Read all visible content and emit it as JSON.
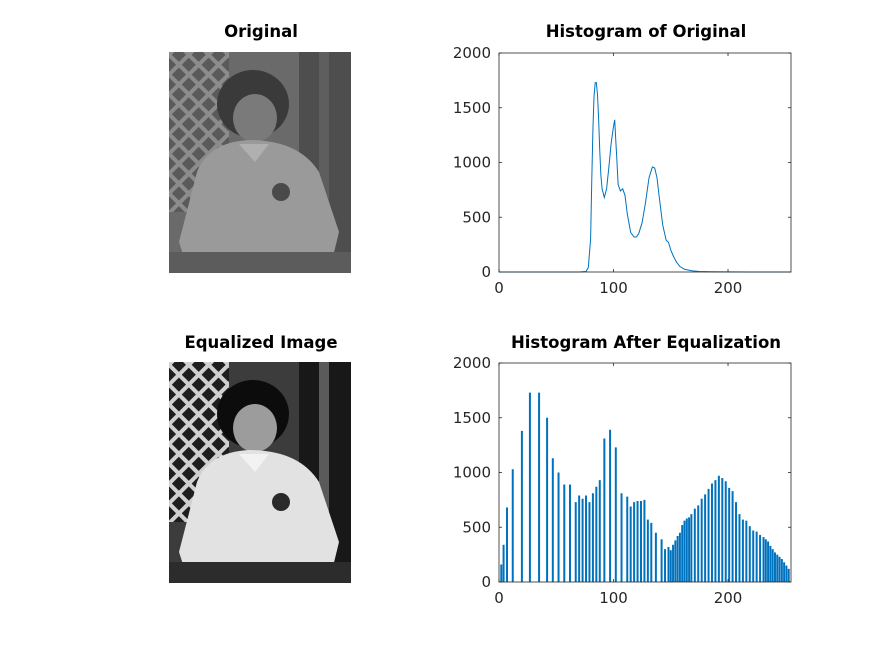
{
  "figure": {
    "panels": [
      {
        "id": "img1",
        "title": "Original"
      },
      {
        "id": "hist1",
        "title": "Histogram of Original"
      },
      {
        "id": "img2",
        "title": "Equalized Image"
      },
      {
        "id": "hist2",
        "title": "Histogram After Equalization"
      }
    ]
  },
  "colors": {
    "series": "#0072BD",
    "axes": "#262626"
  },
  "chart_data": [
    {
      "type": "line",
      "title": "Histogram of Original",
      "xlabel": "",
      "ylabel": "",
      "xlim": [
        0,
        255
      ],
      "ylim": [
        0,
        2000
      ],
      "xticks": [
        0,
        100,
        200
      ],
      "yticks": [
        0,
        500,
        1000,
        1500,
        2000
      ],
      "x": [
        0,
        70,
        76,
        78,
        80,
        81,
        82,
        83,
        84,
        85,
        86,
        87,
        88,
        89,
        90,
        92,
        94,
        96,
        98,
        100,
        101,
        102,
        103,
        104,
        106,
        108,
        110,
        112,
        115,
        118,
        120,
        122,
        125,
        128,
        131,
        134,
        136,
        138,
        140,
        143,
        146,
        148,
        150,
        152,
        155,
        158,
        162,
        168,
        175,
        185,
        200,
        220,
        240,
        255
      ],
      "values": [
        0,
        0,
        5,
        40,
        300,
        850,
        1300,
        1600,
        1730,
        1730,
        1620,
        1400,
        1100,
        880,
        760,
        680,
        760,
        960,
        1180,
        1330,
        1390,
        1200,
        1020,
        800,
        740,
        760,
        700,
        530,
        360,
        320,
        320,
        350,
        450,
        640,
        860,
        960,
        950,
        860,
        680,
        430,
        290,
        270,
        200,
        150,
        90,
        50,
        25,
        12,
        5,
        2,
        1,
        0,
        0,
        0
      ]
    },
    {
      "type": "bar",
      "title": "Histogram After Equalization",
      "xlabel": "",
      "ylabel": "",
      "xlim": [
        0,
        255
      ],
      "ylim": [
        0,
        2000
      ],
      "xticks": [
        0,
        100,
        200
      ],
      "yticks": [
        0,
        500,
        1000,
        1500,
        2000
      ],
      "x": [
        2,
        4,
        7,
        12,
        20,
        27,
        35,
        42,
        47,
        52,
        57,
        62,
        67,
        70,
        73,
        76,
        79,
        82,
        85,
        88,
        92,
        97,
        102,
        107,
        112,
        115,
        118,
        121,
        124,
        127,
        130,
        133,
        137,
        142,
        145,
        148,
        150,
        152,
        154,
        156,
        158,
        160,
        162,
        164,
        166,
        168,
        171,
        174,
        177,
        180,
        183,
        186,
        189,
        192,
        195,
        198,
        201,
        204,
        207,
        210,
        213,
        216,
        219,
        222,
        225,
        228,
        231,
        233,
        235,
        237,
        239,
        241,
        243,
        245,
        247,
        249,
        251,
        253
      ],
      "values": [
        160,
        340,
        680,
        1030,
        1380,
        1730,
        1730,
        1500,
        1130,
        1000,
        890,
        890,
        730,
        790,
        760,
        790,
        730,
        810,
        870,
        930,
        1310,
        1390,
        1230,
        810,
        780,
        690,
        730,
        740,
        740,
        750,
        570,
        540,
        450,
        390,
        300,
        320,
        290,
        340,
        380,
        420,
        450,
        520,
        560,
        580,
        590,
        620,
        670,
        700,
        760,
        800,
        850,
        900,
        930,
        970,
        950,
        920,
        860,
        830,
        730,
        620,
        570,
        560,
        510,
        470,
        460,
        430,
        410,
        390,
        370,
        330,
        300,
        270,
        250,
        230,
        210,
        180,
        150,
        120
      ]
    }
  ]
}
